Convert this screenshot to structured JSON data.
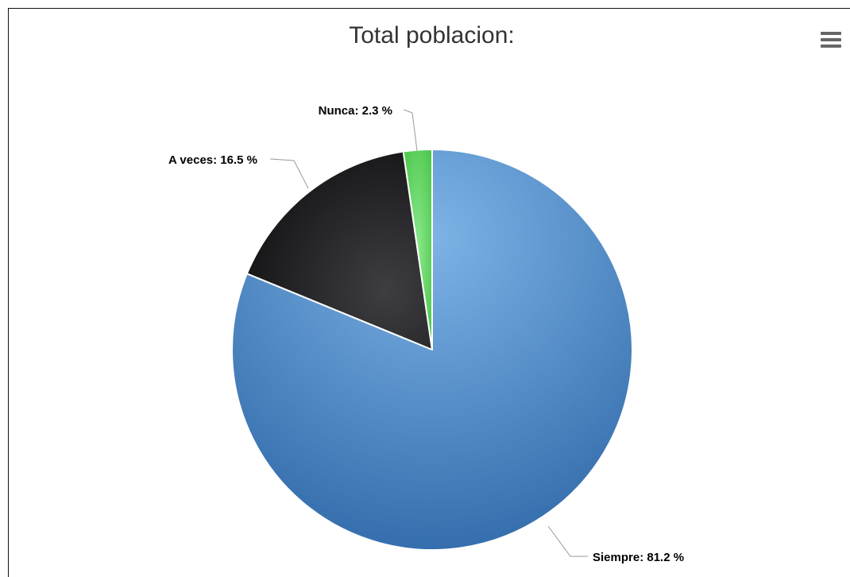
{
  "chart_data": {
    "type": "pie",
    "title": "Total poblacion:",
    "slices": [
      {
        "name": "Siempre",
        "value": 81.2,
        "color": "#4a85c4",
        "label": "Siempre: 81.2 %"
      },
      {
        "name": "A veces",
        "value": 16.5,
        "color": "#2b2b2e",
        "label": "A veces: 16.5 %"
      },
      {
        "name": "Nunca",
        "value": 2.3,
        "color": "#5ed05e",
        "label": "Nunca: 2.3 %"
      }
    ],
    "start": "top",
    "direction": "clockwise",
    "legend": "none"
  },
  "toolbar": {
    "menu_icon": "hamburger-icon"
  }
}
